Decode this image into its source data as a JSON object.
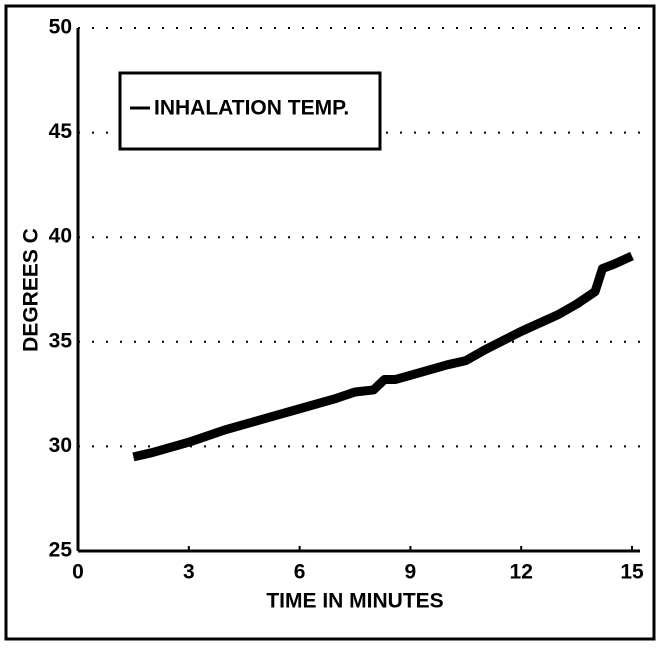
{
  "chart_data": {
    "type": "line",
    "x_label": "TIME IN MINUTES",
    "y_label": "DEGREES C",
    "x": [
      1.5,
      2,
      3,
      4,
      5,
      6,
      7,
      7.5,
      8,
      8.3,
      8.6,
      9,
      10,
      10.5,
      11,
      12,
      13,
      13.5,
      14,
      14.2,
      14.5,
      15
    ],
    "series": [
      {
        "name": "INHALATION TEMP.",
        "color": "#000000",
        "values": [
          29.5,
          29.7,
          30.2,
          30.8,
          31.3,
          31.8,
          32.3,
          32.6,
          32.7,
          33.2,
          33.2,
          33.4,
          33.9,
          34.1,
          34.6,
          35.5,
          36.3,
          36.8,
          37.4,
          38.5,
          38.7,
          39.1
        ]
      }
    ],
    "xlim": [
      0,
      15
    ],
    "xticks": [
      0,
      3,
      6,
      9,
      12,
      15
    ],
    "ylim": [
      25,
      50
    ],
    "yticks": [
      25,
      30,
      35,
      40,
      45,
      50
    ],
    "grid": true,
    "legend": "upper left"
  }
}
